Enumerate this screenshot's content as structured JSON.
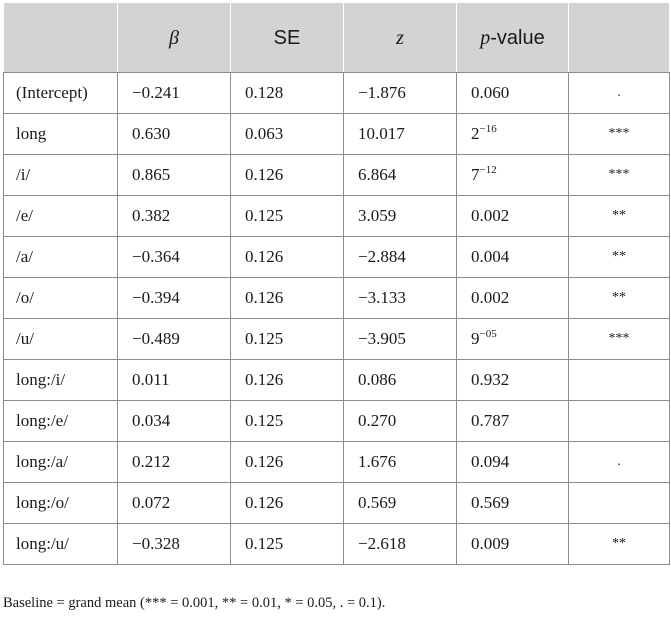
{
  "table": {
    "headers": {
      "term": "",
      "beta": "β",
      "se": "SE",
      "z": "z",
      "p_italic": "p",
      "p_rest": "-value",
      "sig": ""
    },
    "rows": [
      {
        "term": "(Intercept)",
        "beta": "−0.241",
        "se": "0.128",
        "z": "−1.876",
        "p": "0.060",
        "p_sup": "",
        "sig": "."
      },
      {
        "term": "long",
        "beta": "0.630",
        "se": "0.063",
        "z": "10.017",
        "p": "2",
        "p_sup": "−16",
        "sig": "***"
      },
      {
        "term": "/i/",
        "beta": "0.865",
        "se": "0.126",
        "z": "6.864",
        "p": "7",
        "p_sup": "−12",
        "sig": "***"
      },
      {
        "term": "/e/",
        "beta": "0.382",
        "se": "0.125",
        "z": "3.059",
        "p": "0.002",
        "p_sup": "",
        "sig": "**"
      },
      {
        "term": "/a/",
        "beta": "−0.364",
        "se": "0.126",
        "z": "−2.884",
        "p": "0.004",
        "p_sup": "",
        "sig": "**"
      },
      {
        "term": "/o/",
        "beta": "−0.394",
        "se": "0.126",
        "z": "−3.133",
        "p": "0.002",
        "p_sup": "",
        "sig": "**"
      },
      {
        "term": "/u/",
        "beta": "−0.489",
        "se": "0.125",
        "z": "−3.905",
        "p": "9",
        "p_sup": "−05",
        "sig": "***"
      },
      {
        "term": "long:/i/",
        "beta": "0.011",
        "se": "0.126",
        "z": "0.086",
        "p": "0.932",
        "p_sup": "",
        "sig": ""
      },
      {
        "term": "long:/e/",
        "beta": "0.034",
        "se": "0.125",
        "z": "0.270",
        "p": "0.787",
        "p_sup": "",
        "sig": ""
      },
      {
        "term": "long:/a/",
        "beta": "0.212",
        "se": "0.126",
        "z": "1.676",
        "p": "0.094",
        "p_sup": "",
        "sig": "."
      },
      {
        "term": "long:/o/",
        "beta": "0.072",
        "se": "0.126",
        "z": "0.569",
        "p": "0.569",
        "p_sup": "",
        "sig": ""
      },
      {
        "term": "long:/u/",
        "beta": "−0.328",
        "se": "0.125",
        "z": "−2.618",
        "p": "0.009",
        "p_sup": "",
        "sig": "**"
      }
    ]
  },
  "footnote": "Baseline = grand mean (*** = 0.001, ** = 0.01, * = 0.05, . = 0.1).",
  "colors": {
    "header_bg": "#d1d3d4",
    "border": "#8c8c8c",
    "text": "#1a1a1a"
  }
}
